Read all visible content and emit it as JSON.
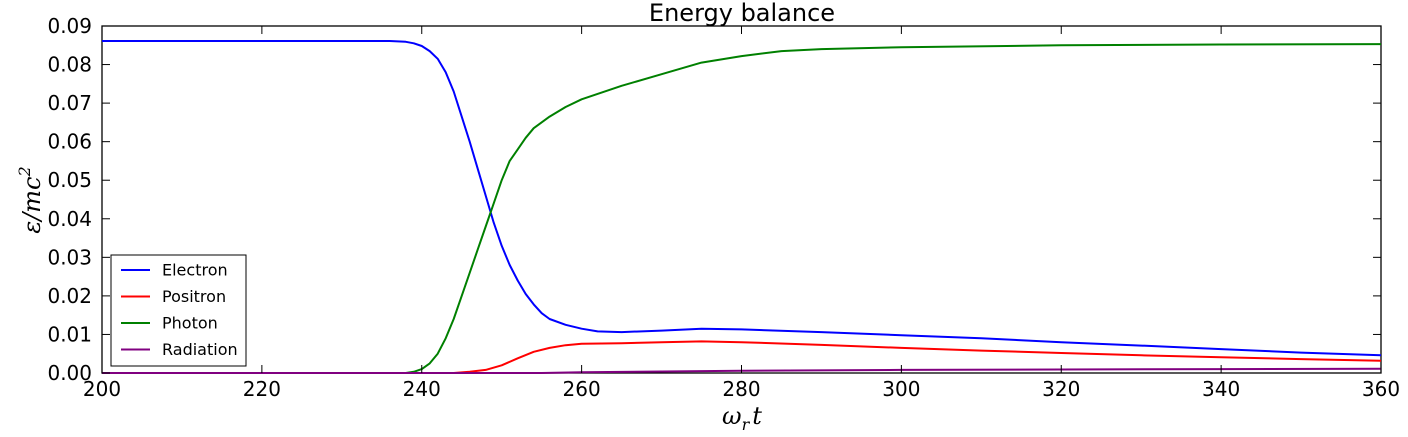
{
  "chart_data": {
    "type": "line",
    "title": "Energy balance",
    "xlabel_var": "ω",
    "xlabel_sub": "r",
    "xlabel_t": "t",
    "ylabel_main": "ε/mc",
    "ylabel_sup": "2",
    "xlim": [
      200,
      360
    ],
    "ylim": [
      0,
      0.09
    ],
    "xticks": [
      200,
      220,
      240,
      260,
      280,
      300,
      320,
      340,
      360
    ],
    "xtick_labels": [
      "200",
      "220",
      "240",
      "260",
      "280",
      "300",
      "320",
      "340",
      "360"
    ],
    "yticks": [
      0,
      0.01,
      0.02,
      0.03,
      0.04,
      0.05,
      0.06,
      0.07,
      0.08,
      0.09
    ],
    "ytick_labels": [
      "0.00",
      "0.01",
      "0.02",
      "0.03",
      "0.04",
      "0.05",
      "0.06",
      "0.07",
      "0.08",
      "0.09"
    ],
    "grid": false,
    "legend_position": "lower-left",
    "series": [
      {
        "name": "Electron",
        "color": "#0000ff",
        "points": [
          [
            200,
            0.0861
          ],
          [
            230,
            0.0861
          ],
          [
            236,
            0.0861
          ],
          [
            238,
            0.0859
          ],
          [
            239,
            0.0855
          ],
          [
            240,
            0.0848
          ],
          [
            241,
            0.0835
          ],
          [
            242,
            0.0815
          ],
          [
            243,
            0.078
          ],
          [
            244,
            0.073
          ],
          [
            245,
            0.0665
          ],
          [
            246,
            0.06
          ],
          [
            247,
            0.053
          ],
          [
            248,
            0.046
          ],
          [
            249,
            0.039
          ],
          [
            250,
            0.033
          ],
          [
            251,
            0.028
          ],
          [
            252,
            0.024
          ],
          [
            253,
            0.0205
          ],
          [
            254,
            0.0178
          ],
          [
            255,
            0.0155
          ],
          [
            256,
            0.014
          ],
          [
            258,
            0.0125
          ],
          [
            260,
            0.0115
          ],
          [
            262,
            0.0108
          ],
          [
            265,
            0.0106
          ],
          [
            270,
            0.011
          ],
          [
            275,
            0.0115
          ],
          [
            280,
            0.0113
          ],
          [
            290,
            0.0106
          ],
          [
            300,
            0.0098
          ],
          [
            310,
            0.009
          ],
          [
            320,
            0.008
          ],
          [
            330,
            0.0071
          ],
          [
            340,
            0.0062
          ],
          [
            350,
            0.0053
          ],
          [
            360,
            0.0046
          ]
        ]
      },
      {
        "name": "Positron",
        "color": "#ff0000",
        "points": [
          [
            200,
            0.0
          ],
          [
            244,
            0.0
          ],
          [
            246,
            0.0003
          ],
          [
            248,
            0.0008
          ],
          [
            250,
            0.002
          ],
          [
            252,
            0.0038
          ],
          [
            254,
            0.0055
          ],
          [
            256,
            0.0065
          ],
          [
            258,
            0.0072
          ],
          [
            260,
            0.0076
          ],
          [
            265,
            0.0077
          ],
          [
            270,
            0.008
          ],
          [
            275,
            0.0082
          ],
          [
            280,
            0.008
          ],
          [
            290,
            0.0073
          ],
          [
            300,
            0.0065
          ],
          [
            310,
            0.0058
          ],
          [
            320,
            0.0052
          ],
          [
            330,
            0.0046
          ],
          [
            340,
            0.0041
          ],
          [
            350,
            0.0036
          ],
          [
            360,
            0.0032
          ]
        ]
      },
      {
        "name": "Photon",
        "color": "#008000",
        "points": [
          [
            200,
            0.0
          ],
          [
            238,
            0.0
          ],
          [
            239,
            0.0003
          ],
          [
            240,
            0.001
          ],
          [
            241,
            0.0025
          ],
          [
            242,
            0.005
          ],
          [
            243,
            0.009
          ],
          [
            244,
            0.014
          ],
          [
            245,
            0.02
          ],
          [
            246,
            0.026
          ],
          [
            247,
            0.032
          ],
          [
            248,
            0.038
          ],
          [
            249,
            0.044
          ],
          [
            250,
            0.05
          ],
          [
            251,
            0.055
          ],
          [
            252,
            0.058
          ],
          [
            253,
            0.061
          ],
          [
            254,
            0.0635
          ],
          [
            256,
            0.0665
          ],
          [
            258,
            0.069
          ],
          [
            260,
            0.071
          ],
          [
            265,
            0.0745
          ],
          [
            270,
            0.0775
          ],
          [
            275,
            0.0805
          ],
          [
            280,
            0.0822
          ],
          [
            285,
            0.0835
          ],
          [
            290,
            0.084
          ],
          [
            300,
            0.0845
          ],
          [
            320,
            0.085
          ],
          [
            340,
            0.0852
          ],
          [
            360,
            0.0853
          ]
        ]
      },
      {
        "name": "Radiation",
        "color": "#800080",
        "points": [
          [
            200,
            0.0
          ],
          [
            255,
            0.0
          ],
          [
            260,
            0.0002
          ],
          [
            270,
            0.0004
          ],
          [
            280,
            0.0006
          ],
          [
            300,
            0.0008
          ],
          [
            320,
            0.0009
          ],
          [
            340,
            0.001
          ],
          [
            360,
            0.0011
          ]
        ]
      }
    ]
  }
}
